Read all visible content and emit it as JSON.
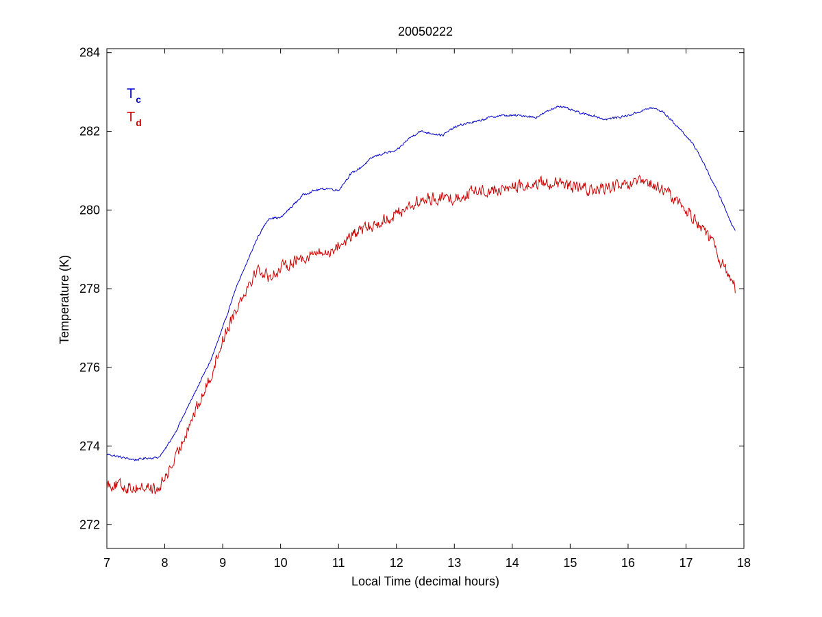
{
  "chart_data": {
    "type": "line",
    "title": "20050222",
    "xlabel": "Local Time (decimal hours)",
    "ylabel": "Temperature (K)",
    "xlim": [
      7,
      18
    ],
    "ylim": [
      271.4,
      284.1
    ],
    "xticks": [
      7,
      8,
      9,
      10,
      11,
      12,
      13,
      14,
      15,
      16,
      17,
      18
    ],
    "yticks": [
      272,
      274,
      276,
      278,
      280,
      282,
      284
    ],
    "xtick_labels": [
      "7",
      "8",
      "9",
      "10",
      "11",
      "12",
      "13",
      "14",
      "15",
      "16",
      "17",
      "18"
    ],
    "ytick_labels": [
      "272",
      "274",
      "276",
      "278",
      "280",
      "282",
      "284"
    ],
    "grid": false,
    "legend_position": "top-left",
    "series": [
      {
        "name_main": "T",
        "name_sub": "c",
        "color": "#0000cc",
        "noise": 0.04,
        "x": [
          7.0,
          7.3,
          7.5,
          7.7,
          7.8,
          7.9,
          8.0,
          8.2,
          8.5,
          8.8,
          9.0,
          9.2,
          9.4,
          9.6,
          9.8,
          9.9,
          10.0,
          10.2,
          10.4,
          10.6,
          10.8,
          11.0,
          11.2,
          11.4,
          11.6,
          11.8,
          12.0,
          12.2,
          12.4,
          12.6,
          12.8,
          13.0,
          13.2,
          13.4,
          13.6,
          13.8,
          14.0,
          14.2,
          14.4,
          14.6,
          14.8,
          15.0,
          15.2,
          15.4,
          15.6,
          15.8,
          16.0,
          16.2,
          16.4,
          16.6,
          16.8,
          17.0,
          17.2,
          17.4,
          17.6,
          17.8,
          17.85
        ],
        "y": [
          273.8,
          273.7,
          273.65,
          273.7,
          273.7,
          273.72,
          273.9,
          274.4,
          275.3,
          276.2,
          277.0,
          277.9,
          278.6,
          279.3,
          279.8,
          279.8,
          279.8,
          280.1,
          280.4,
          280.5,
          280.55,
          280.5,
          280.9,
          281.1,
          281.35,
          281.45,
          281.5,
          281.8,
          282.0,
          281.95,
          281.9,
          282.1,
          282.2,
          282.25,
          282.35,
          282.4,
          282.4,
          282.4,
          282.35,
          282.5,
          282.65,
          282.55,
          282.45,
          282.4,
          282.3,
          282.35,
          282.4,
          282.5,
          282.6,
          282.5,
          282.2,
          281.9,
          281.5,
          280.9,
          280.3,
          279.6,
          279.5
        ]
      },
      {
        "name_main": "T",
        "name_sub": "d",
        "color": "#cc0000",
        "noise": 0.22,
        "x": [
          7.0,
          7.2,
          7.4,
          7.6,
          7.8,
          7.85,
          7.9,
          8.0,
          8.2,
          8.4,
          8.6,
          8.8,
          9.0,
          9.2,
          9.4,
          9.6,
          9.8,
          10.0,
          10.2,
          10.4,
          10.6,
          10.8,
          11.0,
          11.2,
          11.4,
          11.6,
          11.8,
          12.0,
          12.2,
          12.4,
          12.6,
          12.8,
          13.0,
          13.2,
          13.4,
          13.6,
          13.8,
          14.0,
          14.2,
          14.4,
          14.6,
          14.8,
          15.0,
          15.2,
          15.4,
          15.6,
          15.8,
          16.0,
          16.2,
          16.4,
          16.6,
          16.8,
          17.0,
          17.2,
          17.4,
          17.6,
          17.8,
          17.85
        ],
        "y": [
          273.05,
          273.0,
          272.95,
          272.95,
          272.95,
          272.8,
          272.9,
          273.2,
          273.7,
          274.5,
          275.1,
          275.8,
          276.7,
          277.4,
          278.0,
          278.5,
          278.3,
          278.5,
          278.7,
          278.8,
          278.9,
          278.9,
          279.1,
          279.3,
          279.5,
          279.6,
          279.75,
          279.9,
          280.1,
          280.2,
          280.3,
          280.3,
          280.3,
          280.4,
          280.5,
          280.5,
          280.5,
          280.6,
          280.6,
          280.65,
          280.7,
          280.65,
          280.6,
          280.55,
          280.5,
          280.55,
          280.6,
          280.6,
          280.7,
          280.65,
          280.5,
          280.3,
          280.0,
          279.7,
          279.3,
          278.7,
          278.2,
          278.0
        ]
      }
    ]
  }
}
